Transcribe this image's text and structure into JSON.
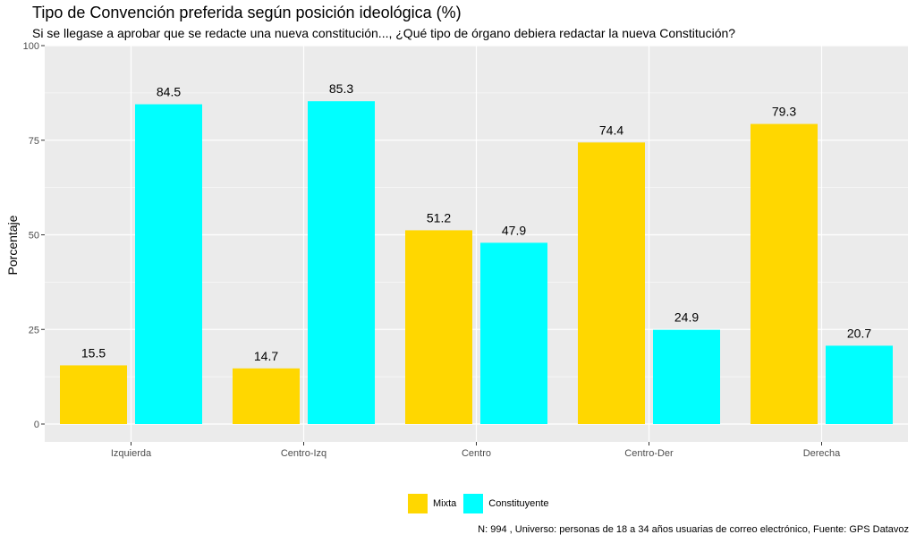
{
  "chart_data": {
    "type": "bar",
    "title": "Tipo de Convención preferida según posición ideológica (%)",
    "subtitle": "Si se llegase a aprobar que se redacte una nueva constitución..., ¿Qué tipo de órgano debiera redactar la nueva Constitución?",
    "xlabel": "",
    "ylabel": "Porcentaje",
    "ylim": [
      0,
      100
    ],
    "yticks": [
      0,
      25,
      50,
      75,
      100
    ],
    "categories": [
      "Izquierda",
      "Centro-Izq",
      "Centro",
      "Centro-Der",
      "Derecha"
    ],
    "series": [
      {
        "name": "Mixta",
        "color": "#FFD700",
        "values": [
          15.5,
          14.7,
          51.2,
          74.4,
          79.3
        ]
      },
      {
        "name": "Constituyente",
        "color": "#00FFFF",
        "values": [
          84.5,
          85.3,
          47.9,
          24.9,
          20.7
        ]
      }
    ],
    "grid": true,
    "legend_position": "bottom",
    "caption": "N: 994 , Universo: personas de 18 a 34 años usuarias de correo electrónico, Fuente: GPS Datavoz"
  }
}
